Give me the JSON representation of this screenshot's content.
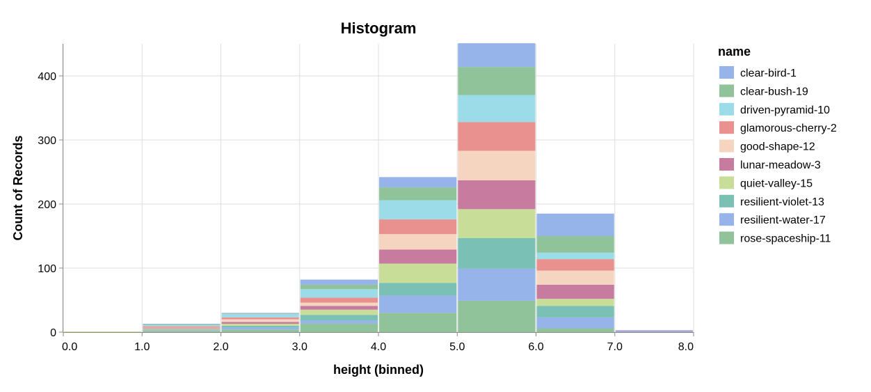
{
  "chart_data": {
    "type": "bar",
    "stacked": true,
    "title": "Histogram",
    "xlabel": "height (binned)",
    "ylabel": "Count of Records",
    "xlim": [
      0,
      8
    ],
    "ylim": [
      0,
      450
    ],
    "x_ticks": [
      "0.0",
      "1.0",
      "2.0",
      "3.0",
      "4.0",
      "5.0",
      "6.0",
      "7.0",
      "8.0"
    ],
    "y_ticks": [
      "0",
      "100",
      "200",
      "300",
      "400"
    ],
    "grid": true,
    "legend_title": "name",
    "legend_position": "right",
    "bins": [
      [
        0,
        1
      ],
      [
        1,
        2
      ],
      [
        2,
        3
      ],
      [
        3,
        4
      ],
      [
        4,
        5
      ],
      [
        5,
        6
      ],
      [
        6,
        7
      ],
      [
        7,
        8
      ]
    ],
    "stack_order_bottom_to_top": [
      "rose-spaceship-11",
      "resilient-water-17",
      "resilient-violet-13",
      "quiet-valley-15",
      "lunar-meadow-3",
      "good-shape-12",
      "glamorous-cherry-2",
      "driven-pyramid-10",
      "clear-bush-19",
      "clear-bird-1"
    ],
    "series": [
      {
        "name": "clear-bird-1",
        "color": "#96b4ea",
        "values": [
          0,
          1,
          1,
          8,
          16,
          37,
          35,
          1
        ]
      },
      {
        "name": "clear-bush-19",
        "color": "#91c39b",
        "values": [
          0,
          1,
          1,
          7,
          20,
          44,
          26,
          0
        ]
      },
      {
        "name": "driven-pyramid-10",
        "color": "#9cdce8",
        "values": [
          0,
          2,
          5,
          13,
          30,
          42,
          10,
          0
        ]
      },
      {
        "name": "glamorous-cherry-2",
        "color": "#e8918e",
        "values": [
          0,
          2,
          3,
          8,
          23,
          45,
          18,
          0
        ]
      },
      {
        "name": "good-shape-12",
        "color": "#f5d4c0",
        "values": [
          0,
          1,
          4,
          5,
          24,
          46,
          22,
          0
        ]
      },
      {
        "name": "lunar-meadow-3",
        "color": "#c77c9f",
        "values": [
          0,
          1,
          3,
          6,
          22,
          45,
          22,
          1
        ]
      },
      {
        "name": "quiet-valley-15",
        "color": "#c8dd98",
        "values": [
          1,
          1,
          3,
          8,
          30,
          45,
          11,
          0
        ]
      },
      {
        "name": "resilient-violet-13",
        "color": "#7bc0b5",
        "values": [
          0,
          1,
          3,
          9,
          20,
          48,
          18,
          0
        ]
      },
      {
        "name": "resilient-water-17",
        "color": "#96b4ea",
        "values": [
          0,
          1,
          3,
          5,
          27,
          50,
          17,
          1
        ]
      },
      {
        "name": "rose-spaceship-11",
        "color": "#91c39b",
        "values": [
          0,
          2,
          4,
          13,
          30,
          49,
          6,
          0
        ]
      }
    ]
  }
}
